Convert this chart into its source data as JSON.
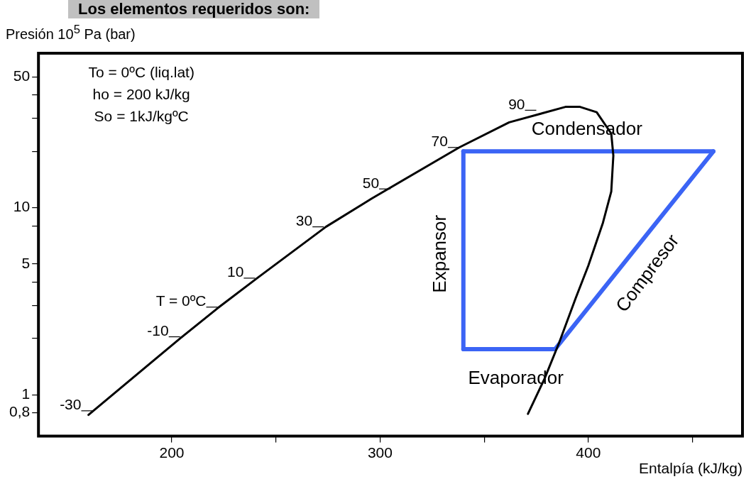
{
  "chart_data": {
    "type": "line",
    "title": "Los elementos requeridos son:",
    "xlabel": "Entalpía (kJ/kg)",
    "ylabel": "Presión 10$^{5}$ Pa (bar)",
    "log": "y",
    "grid": false,
    "legend": false,
    "marker": "none",
    "line_style": "solid",
    "xlim": [
      136,
      474
    ],
    "xticks": [
      200,
      {
        "value": 250,
        "label": null
      },
      300,
      {
        "value": 350,
        "label": null
      },
      400,
      {
        "value": 450,
        "label": null
      }
    ],
    "ylim": [
      0.6,
      67
    ],
    "yticks": [
      {
        "value": 0.8,
        "label": "0,8"
      },
      1,
      {
        "value": 2,
        "label": null
      },
      {
        "value": 3,
        "label": null
      },
      {
        "value": 4,
        "label": null
      },
      5,
      {
        "value": 8,
        "label": null
      },
      10,
      {
        "value": 20,
        "label": null
      },
      {
        "value": 30,
        "label": null
      },
      {
        "value": 40,
        "label": null
      },
      50
    ],
    "series": [
      {
        "color": "#000000",
        "x": [
          160,
          204,
          222,
          241,
          274,
          296,
          338,
          362,
          389,
          396,
          404,
          411,
          412,
          411,
          407,
          400,
          394,
          386,
          379,
          371
        ],
        "values": [
          0.78,
          2.0,
          2.9,
          4.2,
          7.9,
          11.2,
          21,
          28.6,
          34.6,
          34.6,
          32.4,
          24.9,
          19,
          12.2,
          8.3,
          4.9,
          3.3,
          1.9,
          1.22,
          0.79
        ]
      },
      {
        "color": "#3b64f5",
        "x": [
          340,
          460
        ],
        "values": [
          20,
          20
        ]
      },
      {
        "color": "#3b64f5",
        "x": [
          460,
          384
        ],
        "values": [
          20,
          1.75
        ]
      },
      {
        "color": "#3b64f5",
        "x": [
          384,
          340
        ],
        "values": [
          1.75,
          1.75
        ]
      },
      {
        "color": "#3b64f5",
        "x": [
          340,
          340
        ],
        "values": [
          1.75,
          20
        ]
      }
    ],
    "annotations": [
      "To = 0ºC (liq.lat)",
      "ho = 200 kJ/kg",
      "So = 1kJ/kgºC",
      {
        "text": "-30",
        "x": 162,
        "y": 0.82
      },
      {
        "text": "-10",
        "x": 204,
        "y": 2.04
      },
      {
        "text": "T = 0ºC",
        "x": 222,
        "y": 2.94
      },
      {
        "text": "10",
        "x": 240,
        "y": 4.2
      },
      {
        "text": "30",
        "x": 273,
        "y": 7.9
      },
      {
        "text": "50",
        "x": 305,
        "y": 12.6
      },
      {
        "text": "70",
        "x": 338,
        "y": 21
      },
      {
        "text": "90",
        "x": 375,
        "y": 33.2
      },
      "Condensador",
      "Expansor",
      "Compresor",
      "Evaporador"
    ]
  }
}
